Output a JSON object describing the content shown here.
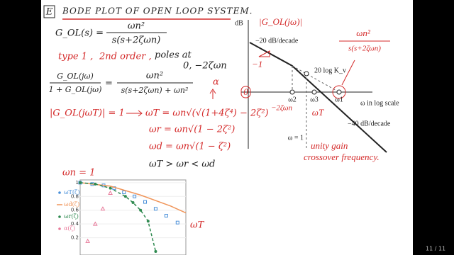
{
  "header": {
    "box": "E",
    "title": "BODE PLOT OF OPEN LOOP SYSTEM."
  },
  "notes": {
    "gol": "G_OL(s) =",
    "gol_num": "ωn²",
    "gol_den": "s(s+2ζωn)",
    "type": "type 1 ,",
    "order": "2nd order ,",
    "poles": "poles at",
    "pole_values": "0, −2ζωn",
    "alpha": "α",
    "cl_num_left": "G_OL(jω)",
    "cl_den_left": "1 + G_OL(jω)",
    "equals": "=",
    "cl_num": "ωn²",
    "cl_den": "s(s+2ζωn) + ωn²",
    "crossover_eq": "|G_OL(jωT)| = 1",
    "omega_t": "ωT = ωn√(√(1+4ζ⁴) − 2ζ²)",
    "omega_r": "ωr = ωn√(1 − 2ζ²)",
    "omega_d": "ωd = ωn√(1 − ζ²)",
    "order_rel": "ωT > ωr < ωd"
  },
  "bode": {
    "y_axis": "dB",
    "magnitude": "|G_OL(jω)|",
    "slope1": "−20 dB/decade",
    "slope_mark": "−1",
    "gain": "20 log K_v",
    "x_axis": "ω in log scale",
    "zero": "0",
    "omega2": "ω2",
    "omega3": "ω3",
    "omega1": "ω1",
    "pole": "−2ζωn",
    "crossover": "ωT",
    "unit": "ω = 1",
    "slope2": "−40 dB/decade",
    "note1": "unity gain",
    "note2": "crossover frequency.",
    "tf_num": "ωn²",
    "tf_den": "s(s+2ζωn)"
  },
  "chart_data": {
    "type": "scatter",
    "annotation": "ωn = 1",
    "curve_label": "ωT",
    "xlim": [
      0,
      1.4
    ],
    "ylim": [
      0,
      1.04
    ],
    "yticks": [
      {
        "value": 0.2,
        "label": "0.2"
      },
      {
        "value": 0.4,
        "label": "0.4"
      },
      {
        "value": 0.6,
        "label": "0.6"
      },
      {
        "value": 0.8,
        "label": "0.8"
      },
      1
    ],
    "series": [
      {
        "name": "ωT(ζ)",
        "color": "#4a90d9",
        "marker": "square",
        "x": [
          0,
          0.16,
          0.31,
          0.45,
          0.58,
          0.72,
          0.86,
          1.0,
          1.14,
          1.29
        ],
        "values": [
          1,
          0.98,
          0.96,
          0.92,
          0.86,
          0.8,
          0.72,
          0.62,
          0.52,
          0.42
        ]
      },
      {
        "name": "ωd(ζ)",
        "color": "#f0955a",
        "marker": "line",
        "x": [
          0,
          0.4,
          0.8,
          1.2,
          1.4
        ],
        "values": [
          1,
          0.95,
          0.82,
          0.66,
          0.56
        ]
      },
      {
        "name": "ωr(ζ)",
        "color": "#2f8a50",
        "marker": "dot",
        "x": [
          0,
          0.2,
          0.4,
          0.6,
          0.7,
          0.8,
          0.9,
          1.0
        ],
        "values": [
          1,
          0.98,
          0.92,
          0.8,
          0.71,
          0.6,
          0.44,
          0
        ]
      },
      {
        "name": "α(ζ)",
        "color": "#e87a9a",
        "marker": "triangle",
        "x": [
          0.1,
          0.2,
          0.3,
          0.4
        ],
        "values": [
          0.15,
          0.4,
          0.62,
          0.85
        ]
      }
    ]
  },
  "page": "11 / 11"
}
